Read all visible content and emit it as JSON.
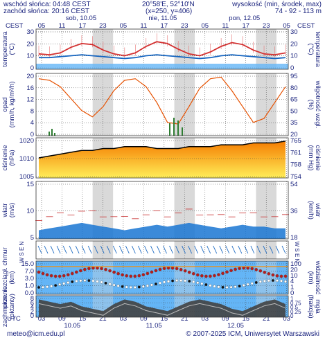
{
  "header": {
    "sunrise": "wschód słońca: 04:48 CEST",
    "sunset": "zachód słońca: 20:16 CEST",
    "coords": "20°58'E, 52°10'N",
    "grid": "(x=250,  y=406)",
    "elevation_label": "wysokość (min, środek, max)",
    "elevation_values": "74 - 92 - 113 m"
  },
  "time_axis": {
    "tz_label": "CEST",
    "tz_label_right": "CEST",
    "day_labels_top": [
      "sob, 10.05",
      "nie, 11.05",
      "pon, 12.05"
    ],
    "hour_ticks_top": [
      "05",
      "11",
      "17",
      "23",
      "05",
      "11",
      "17",
      "23",
      "05",
      "11",
      "17",
      "23",
      "05"
    ],
    "utc_label": "UTC",
    "hour_ticks_bottom": [
      "03",
      "09",
      "15",
      "21",
      "03",
      "09",
      "15",
      "21",
      "03",
      "09",
      "15",
      "21",
      "03"
    ],
    "day_labels_bottom": [
      "10.05",
      "11.05",
      "12.05"
    ]
  },
  "panels": {
    "temperature": {
      "label_left": "temperatura",
      "unit_left": "(°C)",
      "label_right": "temperatura",
      "unit_right": "(°C)",
      "ticks": [
        "30",
        "20",
        "10",
        "0"
      ]
    },
    "precip": {
      "label_left": "opad",
      "unit_left": "(mm/h, kg/m²/h)",
      "label_right": "wilgotność wzgl.",
      "unit_right": "(%)",
      "ticks_left": [
        "20",
        "16",
        "12",
        "8",
        "4",
        "0"
      ],
      "ticks_right": [
        "95",
        "80",
        "65",
        "50",
        "35",
        "20"
      ]
    },
    "pressure": {
      "label_left": "ciśnienie",
      "unit_left": "(hPa)",
      "label_right": "ciśnienie",
      "unit_right": "(mm Hg)",
      "ticks_left": [
        "1020",
        "1010",
        "1005"
      ],
      "ticks_right": [
        "765",
        "761",
        "758",
        "754"
      ]
    },
    "wind": {
      "label_left": "wiatr",
      "unit_left": "(m/s)",
      "label_right": "wiatr",
      "unit_right": "(km/h)",
      "ticks_left": [
        "15",
        "10",
        "5"
      ],
      "ticks_right": [
        "54",
        "36",
        "18"
      ]
    },
    "wind_dir": {
      "label_left": "W S E N",
      "label_right": "W S E N"
    },
    "cloud_levels": {
      "label_left": "pion. rozciągł. chmur",
      "unit_left": "(km)",
      "label_right": "widzialność",
      "unit_right": "(km)",
      "ticks_left": [
        "15.0",
        "7.0",
        "3.0",
        "1.0",
        "0.0"
      ],
      "ticks_right": [
        "100",
        "20",
        "10",
        "4",
        "1",
        "0"
      ]
    },
    "cloudiness": {
      "label_left": "zachmurzenie",
      "unit_left": "(oktanty)",
      "label_right": "mgła",
      "unit_right": "(frakcja)",
      "ticks_left": [
        "8",
        "6",
        "4",
        "2",
        "0"
      ],
      "ticks_right": [
        "1",
        "0.75",
        "0.5",
        "0.25",
        "0"
      ]
    }
  },
  "footer": {
    "email": "meteo@icm.edu.pl",
    "copyright": "© 2007-2025 ICM, Uniwersytet Warszawski"
  },
  "colors": {
    "axis_text": "#1a237e",
    "night_band": "#d9d9d9",
    "temp_line": "#d32f2f",
    "dew_line": "#1565c0",
    "precip_line": "#e65100",
    "pressure_line": "#000000",
    "wind_fill": "#1976d2",
    "sky": "#64b5f6"
  },
  "chart_data": [
    {
      "type": "line",
      "title": "temperatura",
      "ylabel": "temperatura (°C)",
      "ylim": [
        -5,
        35
      ],
      "series": [
        {
          "values": [
            10,
            9,
            11,
            17,
            21,
            20,
            14,
            10,
            8,
            11,
            18,
            23,
            21,
            15,
            10,
            8,
            12,
            18,
            22,
            20,
            14,
            10,
            9,
            11
          ]
        },
        {
          "values": [
            6,
            6,
            7,
            8,
            9,
            8,
            7,
            6,
            5,
            6,
            8,
            9,
            8,
            7,
            6,
            5,
            6,
            8,
            9,
            8,
            7,
            6,
            5,
            6
          ]
        }
      ]
    },
    {
      "type": "line",
      "title": "wilgotność wzgl.",
      "ylabel": "wilgotność wzgl. (%)",
      "ylim": [
        20,
        95
      ],
      "series": [
        {
          "values": [
            90,
            88,
            80,
            65,
            50,
            42,
            55,
            75,
            88,
            90,
            80,
            60,
            35,
            33,
            55,
            78,
            90,
            92,
            75,
            55,
            35,
            40,
            60,
            80
          ]
        }
      ]
    },
    {
      "type": "area",
      "title": "ciśnienie",
      "ylabel": "ciśnienie (hPa)",
      "ylim": [
        1005,
        1025
      ],
      "series": [
        {
          "values": [
            1015,
            1016,
            1017,
            1018,
            1019,
            1019,
            1020,
            1020,
            1021,
            1021,
            1021,
            1020,
            1020,
            1020,
            1021,
            1021,
            1021,
            1022,
            1022,
            1022,
            1023,
            1023,
            1023,
            1024
          ]
        }
      ]
    },
    {
      "type": "area",
      "title": "wiatr",
      "ylabel": "wiatr (m/s)",
      "ylim": [
        0,
        15
      ],
      "series": [
        {
          "values": [
            2,
            2.5,
            3,
            3.5,
            4,
            3.5,
            3,
            2.5,
            2,
            2.5,
            3,
            3.5,
            3,
            3.5,
            4,
            3.5,
            3,
            2.5,
            3,
            3.5,
            3,
            3,
            2.5,
            2.5
          ]
        }
      ]
    },
    {
      "type": "area",
      "title": "zachmurzenie",
      "ylabel": "zachmurzenie (oktanty)",
      "ylim": [
        0,
        8
      ],
      "series": [
        {
          "values": [
            7,
            6,
            5,
            6,
            4,
            3,
            2,
            5,
            7,
            6,
            4,
            3,
            2,
            4,
            6,
            7,
            6,
            5,
            3,
            2,
            4,
            6,
            7,
            5
          ]
        }
      ]
    }
  ]
}
